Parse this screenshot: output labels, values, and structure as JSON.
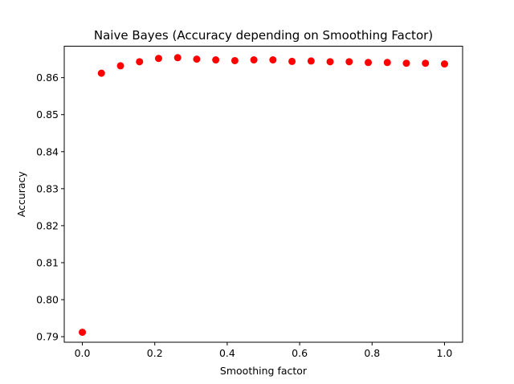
{
  "chart_data": {
    "type": "scatter",
    "title": "Naive Bayes (Accuracy depending on Smoothing Factor)",
    "xlabel": "Smoothing factor",
    "ylabel": "Accuracy",
    "xlim": [
      -0.05,
      1.05
    ],
    "ylim": [
      0.7885,
      0.8685
    ],
    "xticks": [
      0.0,
      0.2,
      0.4,
      0.6,
      0.8,
      1.0
    ],
    "xtick_labels": [
      "0.0",
      "0.2",
      "0.4",
      "0.6",
      "0.8",
      "1.0"
    ],
    "yticks": [
      0.79,
      0.8,
      0.81,
      0.82,
      0.83,
      0.84,
      0.85,
      0.86
    ],
    "ytick_labels": [
      "0.79",
      "0.80",
      "0.81",
      "0.82",
      "0.83",
      "0.84",
      "0.85",
      "0.86"
    ],
    "grid": false,
    "marker_color": "#ff0000",
    "series": [
      {
        "x": [
          0.0,
          0.0526,
          0.1053,
          0.1579,
          0.2105,
          0.2632,
          0.3158,
          0.3684,
          0.4211,
          0.4737,
          0.5263,
          0.5789,
          0.6316,
          0.6842,
          0.7368,
          0.7895,
          0.8421,
          0.8947,
          0.9474,
          1.0
        ],
        "y": [
          0.7912,
          0.8612,
          0.8632,
          0.8643,
          0.8652,
          0.8654,
          0.865,
          0.8648,
          0.8646,
          0.8648,
          0.8648,
          0.8644,
          0.8645,
          0.8643,
          0.8643,
          0.8641,
          0.8641,
          0.8639,
          0.8639,
          0.8637
        ]
      }
    ]
  }
}
